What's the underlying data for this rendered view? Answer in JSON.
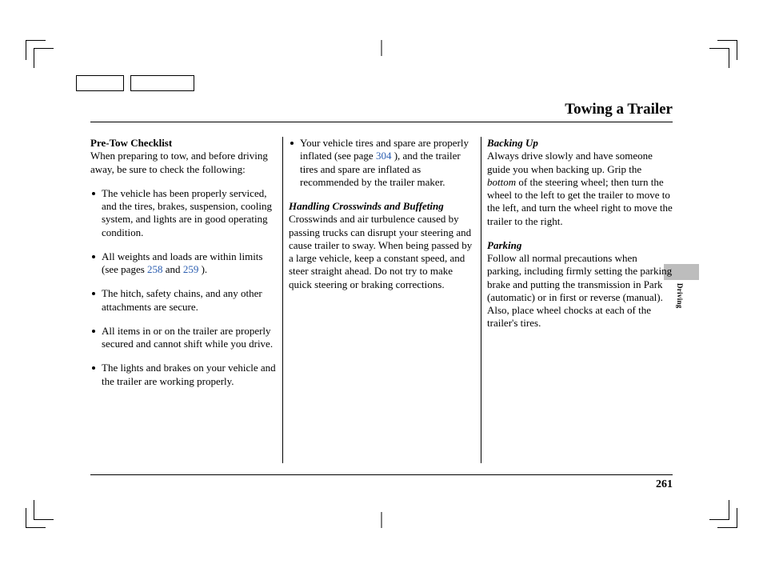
{
  "header": {
    "title": "Towing a Trailer"
  },
  "col1": {
    "heading": "Pre-Tow Checklist",
    "intro": "When preparing to tow, and before driving away, be sure to check the following:",
    "items": [
      "The vehicle has been properly serviced, and the tires, brakes, suspension, cooling system, and lights are in good operating condition.",
      {
        "pre": "All weights and loads are within limits (see pages ",
        "l1": "258",
        "mid": " and ",
        "l2": "259",
        "post": " )."
      },
      "The hitch, safety chains, and any other attachments are secure.",
      "All items in or on the trailer are properly secured and cannot shift while you drive.",
      "The lights and brakes on your vehicle and the trailer are working properly."
    ]
  },
  "col2": {
    "bullet": {
      "pre": "Your vehicle tires and spare are properly inflated (see page ",
      "l1": "304",
      "post": " ), and the trailer tires and spare are inflated as recommended by the trailer maker."
    },
    "heading": "Handling Crosswinds and Buffeting",
    "body": "Crosswinds and air turbulence caused by passing trucks can disrupt your steering and cause trailer to sway. When being passed by a large vehicle, keep a constant speed, and steer straight ahead. Do not try to make quick steering or braking corrections."
  },
  "col3": {
    "heading1": "Backing Up",
    "body1a": "Always drive slowly and have someone guide you when backing up. Grip the ",
    "body1i": "bottom",
    "body1b": " of the steering wheel; then turn the wheel to the left to get the trailer to move to the left, and turn the wheel right to move the trailer to the right.",
    "heading2": "Parking",
    "body2": "Follow all normal precautions when parking, including firmly setting the parking brake and putting the transmission in Park (automatic) or in first or reverse (manual). Also, place wheel chocks at each of the trailer's tires."
  },
  "footer": {
    "page": "261"
  },
  "side": {
    "label": "Driving"
  }
}
